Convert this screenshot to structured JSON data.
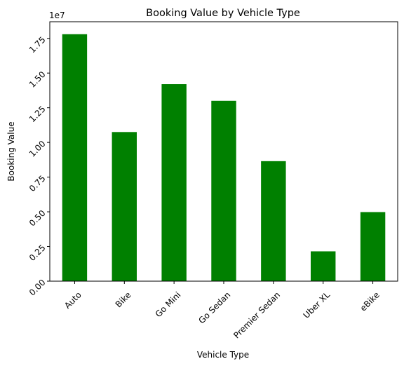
{
  "chart_data": {
    "type": "bar",
    "title": "Booking Value by Vehicle Type",
    "xlabel": "Vehicle Type",
    "ylabel": "Booking Value",
    "y_offset_label": "1e7",
    "categories": [
      "Auto",
      "Bike",
      "Go Mini",
      "Go Sedan",
      "Premier Sedan",
      "Uber XL",
      "eBike"
    ],
    "values": [
      17800000,
      10750000,
      14200000,
      13000000,
      8650000,
      2150000,
      4980000
    ],
    "ylim": [
      0,
      18700000
    ],
    "yticks": [
      0,
      2500000,
      5000000,
      7500000,
      10000000,
      12500000,
      15000000,
      17500000
    ],
    "ytick_labels": [
      "0.00",
      "0.25",
      "0.50",
      "0.75",
      "1.00",
      "1.25",
      "1.50",
      "1.75"
    ],
    "bar_color": "#008000",
    "grid": false,
    "legend": false
  }
}
